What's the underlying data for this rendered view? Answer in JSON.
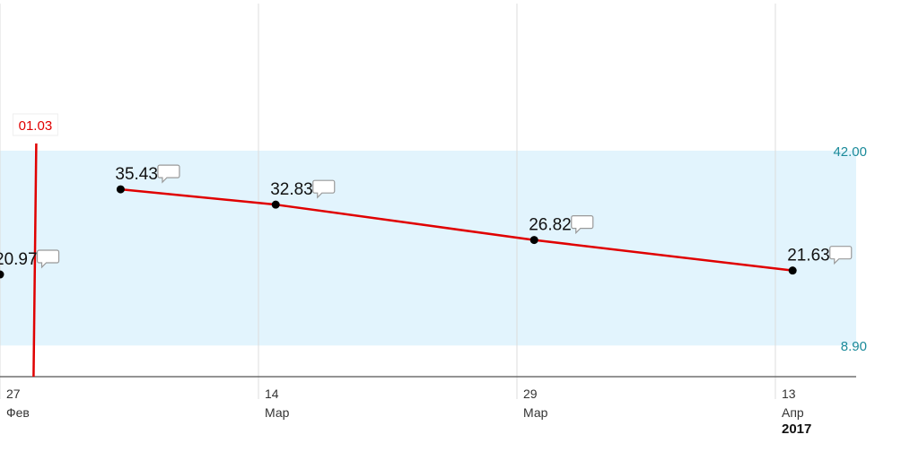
{
  "chart_data": {
    "type": "line",
    "series": [
      {
        "color": "#e00000",
        "x": [
          "2017-02-27",
          "2017-03-06",
          "2017-03-15",
          "2017-03-30",
          "2017-04-14"
        ],
        "values": [
          20.97,
          35.43,
          32.83,
          26.82,
          21.63
        ]
      }
    ],
    "xlim": [
      "2017-02-27",
      "2017-04-18"
    ],
    "xticks": [
      {
        "value": "2017-02-27",
        "label": "27",
        "month": "Фев"
      },
      {
        "value": "2017-03-14",
        "label": "14",
        "month": "Мар"
      },
      {
        "value": "2017-03-29",
        "label": "29",
        "month": "Мар"
      },
      {
        "value": "2017-04-13",
        "label": "13",
        "month": "Апр",
        "year": "2017"
      }
    ],
    "ylim": [
      3.6,
      67.6
    ],
    "yticks": [
      {
        "value": 8.9,
        "label": "8.90"
      },
      {
        "value": 42,
        "label": "42.00"
      }
    ],
    "band_color": "#e2f4fd",
    "marker": {
      "x": "2017-03-01",
      "label": "01.03",
      "color": "#e00000"
    },
    "grid": true
  }
}
